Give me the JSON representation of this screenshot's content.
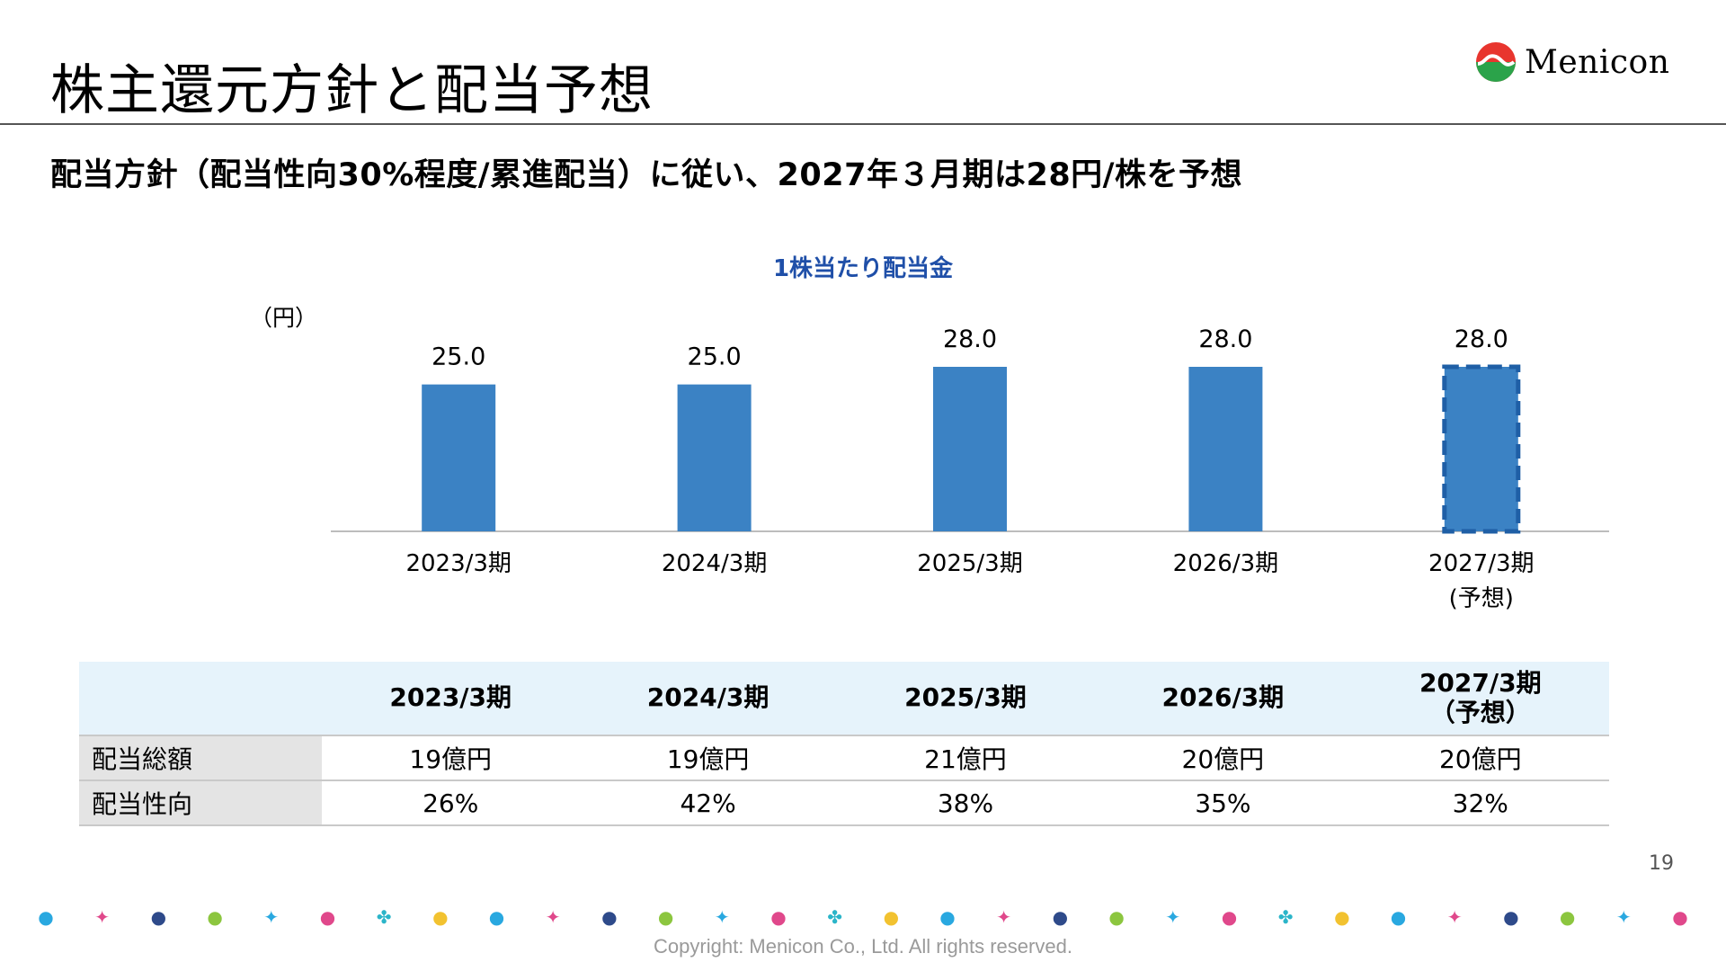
{
  "header": {
    "title": "株主還元方針と配当予想",
    "logo_text": "Menicon"
  },
  "subtitle": "配当方針（配当性向30%程度/累進配当）に従い、2027年３月期は28円/株を予想",
  "colors": {
    "bar": "#3B82C4",
    "bar_forecast_border": "#1F5FA6",
    "chart_title": "#1F4FA8",
    "table_header_bg": "#E6F3FB",
    "row_label_bg": "#E4E4E4"
  },
  "chart_data": {
    "type": "bar",
    "title": "1株当たり配当金",
    "unit_label": "（円）",
    "categories": [
      "2023/3期",
      "2024/3期",
      "2025/3期",
      "2026/3期",
      "2027/3期"
    ],
    "category_sublabels": [
      "",
      "",
      "",
      "",
      "(予想)"
    ],
    "values": [
      25.0,
      25.0,
      28.0,
      28.0,
      28.0
    ],
    "value_labels": [
      "25.0",
      "25.0",
      "28.0",
      "28.0",
      "28.0"
    ],
    "forecast": [
      false,
      false,
      false,
      false,
      true
    ],
    "ylim": [
      0,
      28
    ],
    "grid": false,
    "legend": "none"
  },
  "table": {
    "columns": [
      {
        "line1": "2023/3期",
        "line2": ""
      },
      {
        "line1": "2024/3期",
        "line2": ""
      },
      {
        "line1": "2025/3期",
        "line2": ""
      },
      {
        "line1": "2026/3期",
        "line2": ""
      },
      {
        "line1": "2027/3期",
        "line2": "（予想）"
      }
    ],
    "rows": [
      {
        "label": "配当総額",
        "cells": [
          "19億円",
          "19億円",
          "21億円",
          "20億円",
          "20億円"
        ]
      },
      {
        "label": "配当性向",
        "cells": [
          "26%",
          "42%",
          "38%",
          "35%",
          "32%"
        ]
      }
    ]
  },
  "footer": {
    "page_number": "19",
    "copyright": "Copyright: Menicon Co., Ltd. All rights reserved.",
    "icons": [
      "drop-icon",
      "sparkle-icon",
      "m-ball-icon",
      "green-ball-icon",
      "star-icon",
      "pink-drop-icon",
      "clover-icon",
      "coin-icon"
    ]
  }
}
